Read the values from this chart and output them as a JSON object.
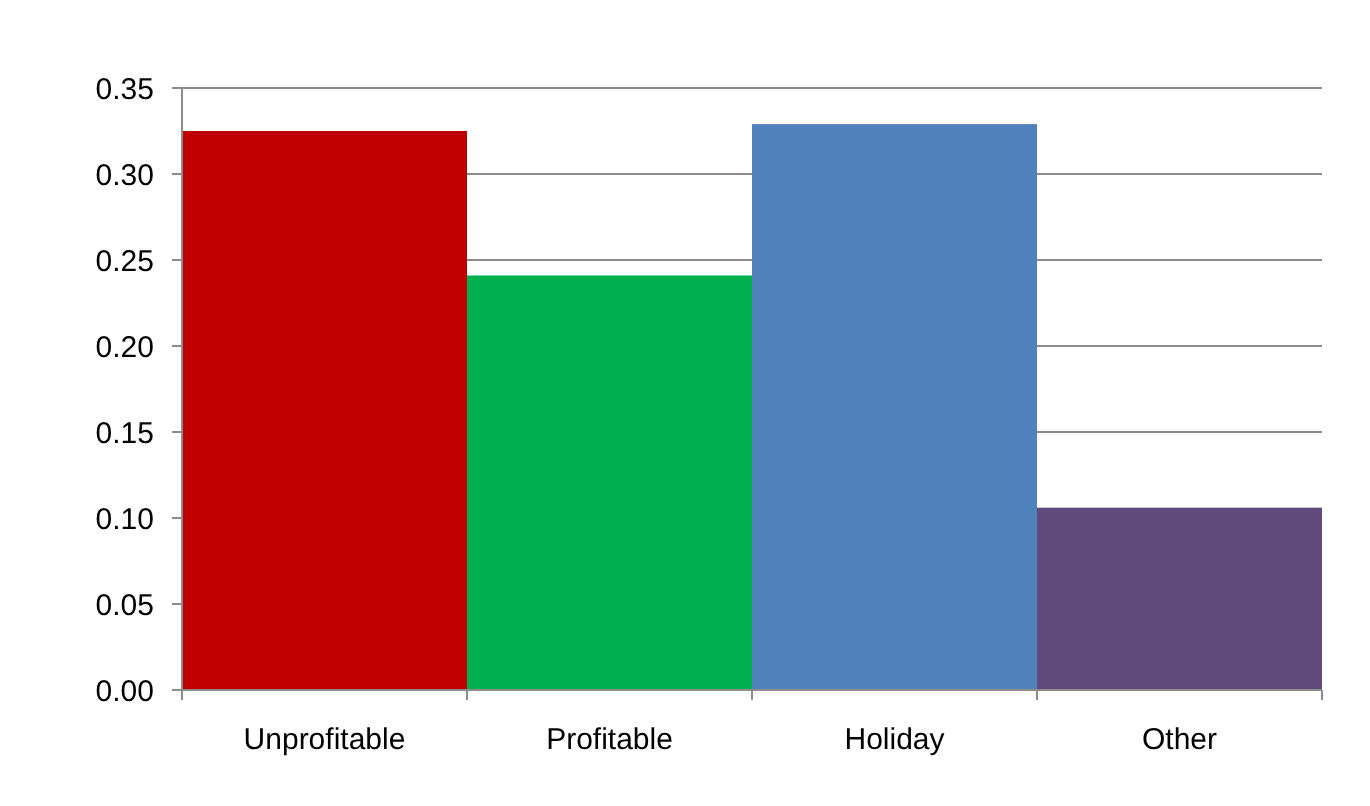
{
  "chart_data": {
    "type": "bar",
    "categories": [
      "Unprofitable",
      "Profitable",
      "Holiday",
      "Other"
    ],
    "values": [
      0.325,
      0.241,
      0.329,
      0.106
    ],
    "colors": [
      "#c00000",
      "#00b050",
      "#4f81bd",
      "#604a7b"
    ],
    "ylim": [
      0,
      0.35
    ],
    "yticks": [
      {
        "value": 0,
        "label": "0.00"
      },
      {
        "value": 0.05,
        "label": "0.05"
      },
      {
        "value": 0.1,
        "label": "0.10"
      },
      {
        "value": 0.15,
        "label": "0.15"
      },
      {
        "value": 0.2,
        "label": "0.20"
      },
      {
        "value": 0.25,
        "label": "0.25"
      },
      {
        "value": 0.3,
        "label": "0.30"
      },
      {
        "value": 0.35,
        "label": "0.35"
      }
    ],
    "grid": "y"
  }
}
